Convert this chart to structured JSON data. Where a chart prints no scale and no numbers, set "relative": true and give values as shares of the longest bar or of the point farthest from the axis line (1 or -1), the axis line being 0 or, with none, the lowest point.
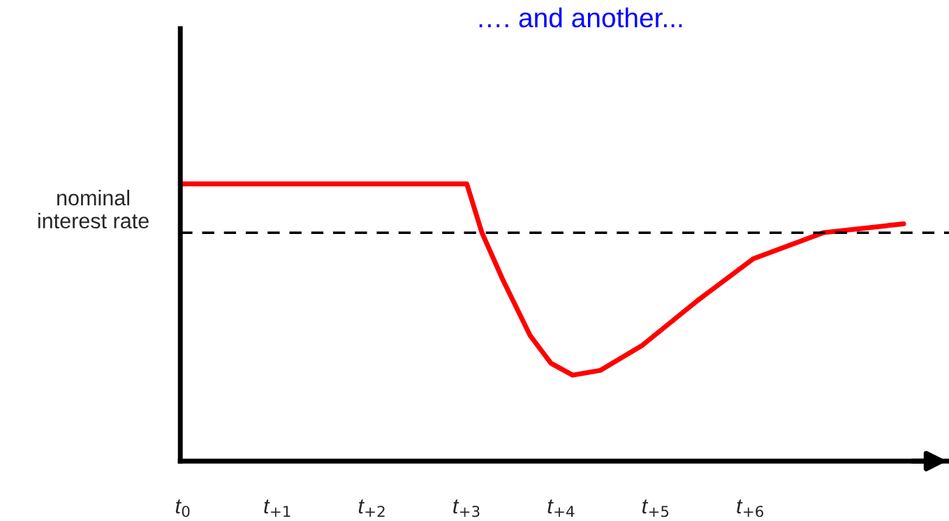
{
  "chart_data": {
    "type": "line",
    "title": "…. and another...",
    "relative": true,
    "grid": false,
    "legend": false,
    "tick_labels": "x",
    "marker": "none",
    "line_style": "solid",
    "xlim": [
      -0.03,
      8.1
    ],
    "xticks": [
      {
        "value": 0,
        "label": "t$_{0}$"
      },
      {
        "value": 1,
        "label": "t$_{+1}$"
      },
      {
        "value": 2,
        "label": "t$_{+2}$"
      },
      {
        "value": 3,
        "label": "t$_{+3}$"
      },
      {
        "value": 4,
        "label": "t$_{+4}$"
      },
      {
        "value": 5,
        "label": "t$_{+5}$"
      },
      {
        "value": 6,
        "label": "t$_{+6}$"
      }
    ],
    "series": [
      {
        "color": "#ff0000",
        "x": [
          -0.03,
          3.0,
          3.16,
          3.38,
          3.67,
          3.89,
          4.12,
          4.41,
          4.85,
          5.44,
          6.03,
          6.77,
          7.62
        ],
        "values": [
          1,
          1,
          0.824,
          0.655,
          0.453,
          0.353,
          0.31,
          0.327,
          0.416,
          0.579,
          0.73,
          0.824,
          0.856
        ]
      }
    ],
    "ref_lines": [
      {
        "axis": "y",
        "value": 0.824,
        "label": "nominal\ninterest rate",
        "color": "#000000",
        "line_style": "dashed"
      }
    ]
  }
}
